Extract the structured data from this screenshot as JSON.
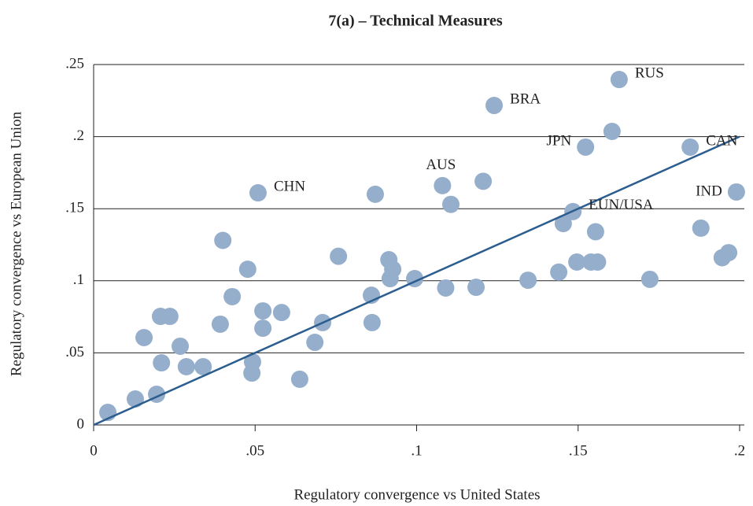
{
  "chart_data": {
    "type": "scatter",
    "title": "7(a) – Technical Measures",
    "x_label": "Regulatory convergence vs United States",
    "y_label": "Regulatory convergence vs European Union",
    "color": "#95aecb",
    "line_color": "#2b5d8f",
    "grid": true,
    "xlim": [
      0,
      0.2
    ],
    "ylim": [
      0,
      0.25
    ],
    "xticks": [
      0,
      {
        "value": 0.05,
        "label": ".05"
      },
      {
        "value": 0.1,
        "label": ".1"
      },
      {
        "value": 0.15,
        "label": ".15"
      },
      {
        "value": 0.2,
        "label": ".2"
      }
    ],
    "yticks": [
      0,
      {
        "value": 0.05,
        "label": ".05"
      },
      {
        "value": 0.1,
        "label": ".1"
      },
      {
        "value": 0.15,
        "label": ".15"
      },
      {
        "value": 0.2,
        "label": ".2"
      },
      {
        "value": 0.25,
        "label": ".25"
      }
    ],
    "x": [
      0.0044,
      0.0129,
      0.0195,
      0.0156,
      0.021,
      0.0207,
      0.0236,
      0.0268,
      0.0287,
      0.0339,
      0.0392,
      0.04,
      0.0429,
      0.0477,
      0.0492,
      0.049,
      0.0524,
      0.0524,
      0.0509,
      0.0582,
      0.0638,
      0.0685,
      0.0709,
      0.0758,
      0.086,
      0.0862,
      0.0872,
      0.0914,
      0.0926,
      0.0918,
      0.0994,
      0.108,
      0.109,
      0.1106,
      0.1184,
      0.1206,
      0.124,
      0.1345,
      0.144,
      0.1454,
      0.1484,
      0.1496,
      0.1523,
      0.154,
      0.156,
      0.1554,
      0.1605,
      0.1627,
      0.1722,
      0.1847,
      0.188,
      0.1946,
      0.1966,
      0.199
    ],
    "y": [
      0.0087,
      0.018,
      0.0213,
      0.0606,
      0.0431,
      0.0753,
      0.0753,
      0.0546,
      0.0404,
      0.0404,
      0.0699,
      0.128,
      0.089,
      0.108,
      0.0437,
      0.036,
      0.0791,
      0.0671,
      0.161,
      0.078,
      0.0317,
      0.0573,
      0.071,
      0.117,
      0.09,
      0.071,
      0.16,
      0.1146,
      0.108,
      0.1015,
      0.1015,
      0.166,
      0.095,
      0.153,
      0.0955,
      0.169,
      0.2216,
      0.1004,
      0.106,
      0.1397,
      0.148,
      0.113,
      0.1927,
      0.113,
      0.113,
      0.134,
      0.2036,
      0.2396,
      0.101,
      0.1927,
      0.1365,
      0.116,
      0.1195,
      0.1616
    ],
    "point_labels": [
      null,
      null,
      null,
      null,
      null,
      null,
      null,
      null,
      null,
      null,
      null,
      null,
      null,
      null,
      null,
      null,
      null,
      null,
      "CHN",
      null,
      null,
      null,
      null,
      null,
      null,
      null,
      null,
      null,
      null,
      null,
      null,
      "AUS",
      null,
      null,
      null,
      null,
      "BRA",
      null,
      null,
      null,
      "EUN/USA",
      null,
      "JPN",
      null,
      null,
      null,
      null,
      "RUS",
      null,
      "CAN",
      null,
      null,
      null,
      "IND"
    ],
    "reference_line": {
      "x": [
        0,
        0.2
      ],
      "y": [
        0,
        0.2
      ]
    }
  }
}
